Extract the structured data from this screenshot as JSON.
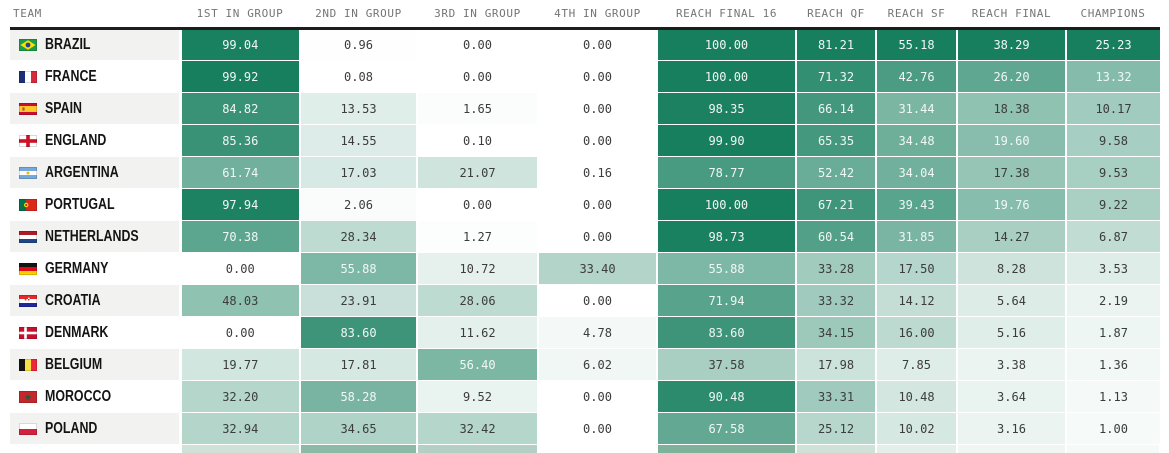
{
  "page": {
    "background": "#ffffff",
    "header_rule_color": "#1d1d1d",
    "row_stripe_color": "#f2f3f1",
    "team_text_color": "#141414",
    "header_text_color": "#757575"
  },
  "chart_data": {
    "type": "table",
    "title": "World Cup team probabilities heatmap (percent)",
    "legend_position": "none",
    "heatmap": {
      "zero_color": "#ffffff",
      "full_color": "#177f5e",
      "cell_text_dark": "#3c3c3c",
      "cell_text_light": "#f1f7f3",
      "light_text_threshold": 0.5,
      "column_scale_max": {
        "g1": 100,
        "g2": 100,
        "g3": 100,
        "g4": 100,
        "rf16": 100,
        "qf": 81.21,
        "sf": 55.18,
        "final": 38.29,
        "champions": 25.23
      }
    },
    "columns": [
      {
        "key": "team",
        "label": "TEAM"
      },
      {
        "key": "g1",
        "label": "1ST IN GROUP"
      },
      {
        "key": "g2",
        "label": "2ND IN GROUP"
      },
      {
        "key": "g3",
        "label": "3RD IN GROUP"
      },
      {
        "key": "g4",
        "label": "4TH IN GROUP"
      },
      {
        "key": "rf16",
        "label": "REACH FINAL 16"
      },
      {
        "key": "qf",
        "label": "REACH QF"
      },
      {
        "key": "sf",
        "label": "REACH SF"
      },
      {
        "key": "final",
        "label": "REACH FINAL"
      },
      {
        "key": "champions",
        "label": "CHAMPIONS"
      }
    ],
    "rows": [
      {
        "name": "BRAZIL",
        "flag": "brazil",
        "values": {
          "g1": "99.04",
          "g2": "0.96",
          "g3": "0.00",
          "g4": "0.00",
          "rf16": "100.00",
          "qf": "81.21",
          "sf": "55.18",
          "final": "38.29",
          "champions": "25.23"
        }
      },
      {
        "name": "FRANCE",
        "flag": "france",
        "values": {
          "g1": "99.92",
          "g2": "0.08",
          "g3": "0.00",
          "g4": "0.00",
          "rf16": "100.00",
          "qf": "71.32",
          "sf": "42.76",
          "final": "26.20",
          "champions": "13.32"
        }
      },
      {
        "name": "SPAIN",
        "flag": "spain",
        "values": {
          "g1": "84.82",
          "g2": "13.53",
          "g3": "1.65",
          "g4": "0.00",
          "rf16": "98.35",
          "qf": "66.14",
          "sf": "31.44",
          "final": "18.38",
          "champions": "10.17"
        }
      },
      {
        "name": "ENGLAND",
        "flag": "england",
        "values": {
          "g1": "85.36",
          "g2": "14.55",
          "g3": "0.10",
          "g4": "0.00",
          "rf16": "99.90",
          "qf": "65.35",
          "sf": "34.48",
          "final": "19.60",
          "champions": "9.58"
        }
      },
      {
        "name": "ARGENTINA",
        "flag": "argentina",
        "values": {
          "g1": "61.74",
          "g2": "17.03",
          "g3": "21.07",
          "g4": "0.16",
          "rf16": "78.77",
          "qf": "52.42",
          "sf": "34.04",
          "final": "17.38",
          "champions": "9.53"
        }
      },
      {
        "name": "PORTUGAL",
        "flag": "portugal",
        "values": {
          "g1": "97.94",
          "g2": "2.06",
          "g3": "0.00",
          "g4": "0.00",
          "rf16": "100.00",
          "qf": "67.21",
          "sf": "39.43",
          "final": "19.76",
          "champions": "9.22"
        }
      },
      {
        "name": "NETHERLANDS",
        "flag": "netherlands",
        "values": {
          "g1": "70.38",
          "g2": "28.34",
          "g3": "1.27",
          "g4": "0.00",
          "rf16": "98.73",
          "qf": "60.54",
          "sf": "31.85",
          "final": "14.27",
          "champions": "6.87"
        }
      },
      {
        "name": "GERMANY",
        "flag": "germany",
        "values": {
          "g1": "0.00",
          "g2": "55.88",
          "g3": "10.72",
          "g4": "33.40",
          "rf16": "55.88",
          "qf": "33.28",
          "sf": "17.50",
          "final": "8.28",
          "champions": "3.53"
        }
      },
      {
        "name": "CROATIA",
        "flag": "croatia",
        "values": {
          "g1": "48.03",
          "g2": "23.91",
          "g3": "28.06",
          "g4": "0.00",
          "rf16": "71.94",
          "qf": "33.32",
          "sf": "14.12",
          "final": "5.64",
          "champions": "2.19"
        }
      },
      {
        "name": "DENMARK",
        "flag": "denmark",
        "values": {
          "g1": "0.00",
          "g2": "83.60",
          "g3": "11.62",
          "g4": "4.78",
          "rf16": "83.60",
          "qf": "34.15",
          "sf": "16.00",
          "final": "5.16",
          "champions": "1.87"
        }
      },
      {
        "name": "BELGIUM",
        "flag": "belgium",
        "values": {
          "g1": "19.77",
          "g2": "17.81",
          "g3": "56.40",
          "g4": "6.02",
          "rf16": "37.58",
          "qf": "17.98",
          "sf": "7.85",
          "final": "3.38",
          "champions": "1.36"
        }
      },
      {
        "name": "MOROCCO",
        "flag": "morocco",
        "values": {
          "g1": "32.20",
          "g2": "58.28",
          "g3": "9.52",
          "g4": "0.00",
          "rf16": "90.48",
          "qf": "33.31",
          "sf": "10.48",
          "final": "3.64",
          "champions": "1.13"
        }
      },
      {
        "name": "POLAND",
        "flag": "poland",
        "values": {
          "g1": "32.94",
          "g2": "34.65",
          "g3": "32.42",
          "g4": "0.00",
          "rf16": "67.58",
          "qf": "25.12",
          "sf": "10.02",
          "final": "3.16",
          "champions": "1.00"
        }
      }
    ],
    "partial_next_row_colors": {
      "g1": "#cfe2d8",
      "g2": "#8cbaa6",
      "g3": "#b2d0c3",
      "g4": "#ffffff",
      "rf16": "#7fb29b",
      "qf": "#cfe2d8",
      "sf": "#e4efe9",
      "final": "#f0f6f2",
      "champions": "#f6faf7"
    }
  }
}
